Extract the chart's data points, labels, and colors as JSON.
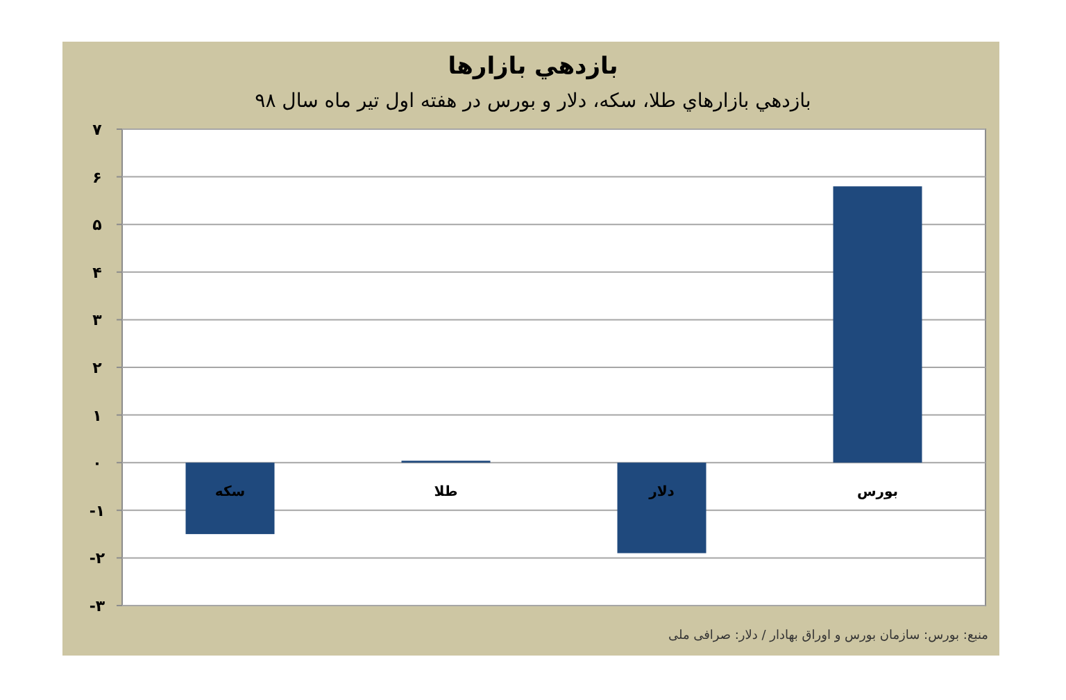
{
  "chart_data": {
    "type": "bar",
    "title": "بازدهي بازارها",
    "subtitle": "بازدهي بازارهاي طلا، سکه، دلار و بورس در هفته اول تير ماه سال ۹۸",
    "categories": [
      "سکه",
      "طلا",
      "دلار",
      "بورس"
    ],
    "values": [
      -1.5,
      0.04,
      -1.9,
      5.8
    ],
    "color": "#1f497d",
    "ylim": [
      -3,
      7
    ],
    "yticks": [
      {
        "value": -3,
        "label": "-۳"
      },
      {
        "value": -2,
        "label": "-۲"
      },
      {
        "value": -1,
        "label": "-۱"
      },
      {
        "value": 0,
        "label": "۰"
      },
      {
        "value": 1,
        "label": "۱"
      },
      {
        "value": 2,
        "label": "۲"
      },
      {
        "value": 3,
        "label": "۳"
      },
      {
        "value": 4,
        "label": "۴"
      },
      {
        "value": 5,
        "label": "۵"
      },
      {
        "value": 6,
        "label": "۶"
      },
      {
        "value": 7,
        "label": "۷"
      }
    ],
    "grid": "y",
    "annotations": [
      "منبع: بورس: سازمان بورس و اوراق بهادار / دلار: صرافی ملی"
    ]
  }
}
